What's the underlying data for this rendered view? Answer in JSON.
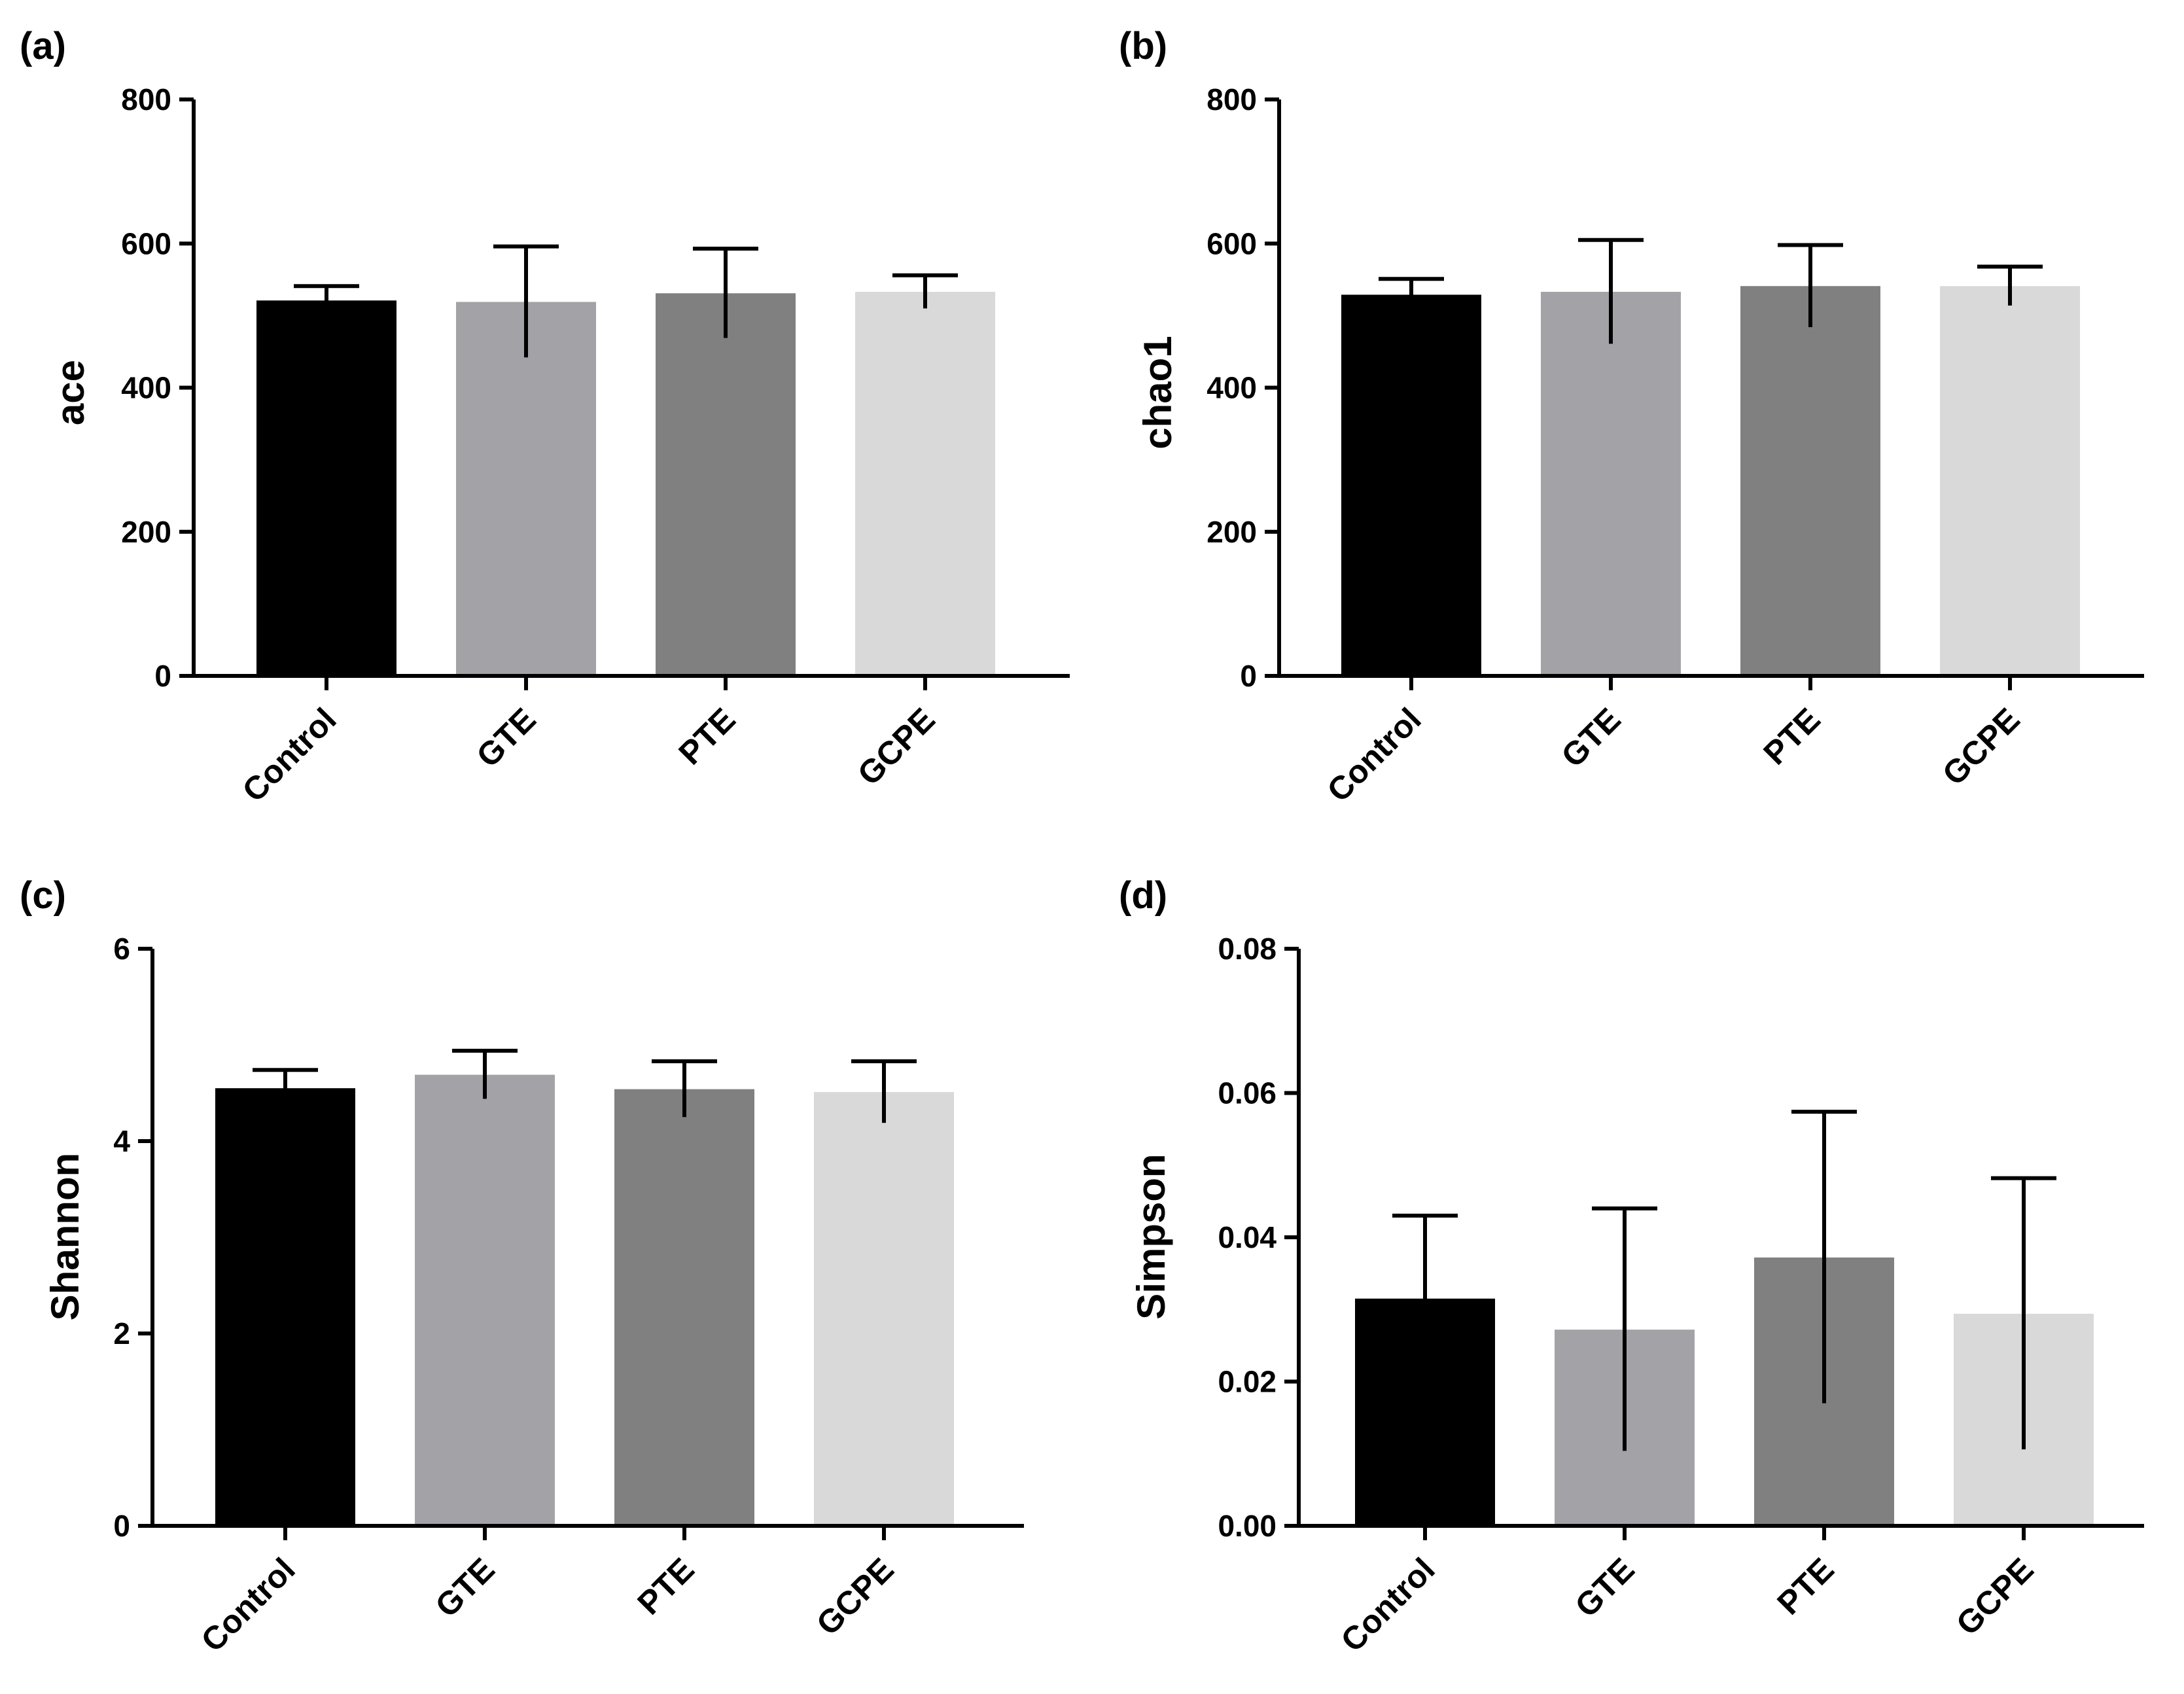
{
  "chart_data": [
    {
      "panel": "(a)",
      "type": "bar",
      "categories": [
        "Control",
        "GTE",
        "PTE",
        "GCPE"
      ],
      "values": [
        521,
        519,
        531,
        533
      ],
      "errors": [
        20,
        77,
        62,
        23
      ],
      "colors": [
        "#000000",
        "#a3a2a6",
        "#808080",
        "#d9d9d9"
      ],
      "ylabel": "ace",
      "ylim": [
        0,
        800
      ],
      "yticks": [
        "0",
        "200",
        "400",
        "600",
        "800"
      ],
      "ytick_values": [
        0,
        200,
        400,
        600,
        800
      ]
    },
    {
      "panel": "(b)",
      "type": "bar",
      "categories": [
        "Control",
        "GTE",
        "PTE",
        "GCPE"
      ],
      "values": [
        529,
        533,
        541,
        541
      ],
      "errors": [
        22,
        72,
        57,
        27
      ],
      "colors": [
        "#000000",
        "#a3a2a6",
        "#808080",
        "#d9d9d9"
      ],
      "ylabel": "chao1",
      "ylim": [
        0,
        800
      ],
      "yticks": [
        "0",
        "200",
        "400",
        "600",
        "800"
      ],
      "ytick_values": [
        0,
        200,
        400,
        600,
        800
      ]
    },
    {
      "panel": "(c)",
      "type": "bar",
      "categories": [
        "Control",
        "GTE",
        "PTE",
        "GCPE"
      ],
      "values": [
        4.55,
        4.69,
        4.54,
        4.51
      ],
      "errors": [
        0.19,
        0.25,
        0.29,
        0.32
      ],
      "colors": [
        "#000000",
        "#a3a2a6",
        "#808080",
        "#d9d9d9"
      ],
      "ylabel": "Shannon",
      "ylim": [
        0,
        6
      ],
      "yticks": [
        "0",
        "2",
        "4",
        "6"
      ],
      "ytick_values": [
        0,
        2,
        4,
        6
      ]
    },
    {
      "panel": "(d)",
      "type": "bar",
      "categories": [
        "Control",
        "GTE",
        "PTE",
        "GCPE"
      ],
      "values": [
        0.0315,
        0.0272,
        0.0372,
        0.0294
      ],
      "errors": [
        0.0115,
        0.0168,
        0.0202,
        0.0188
      ],
      "colors": [
        "#000000",
        "#a3a2a6",
        "#808080",
        "#d9d9d9"
      ],
      "ylabel": "Simpson",
      "ylim": [
        0,
        0.08
      ],
      "yticks": [
        "0.00",
        "0.02",
        "0.04",
        "0.06",
        "0.08"
      ],
      "ytick_values": [
        0,
        0.02,
        0.04,
        0.06,
        0.08
      ]
    }
  ]
}
